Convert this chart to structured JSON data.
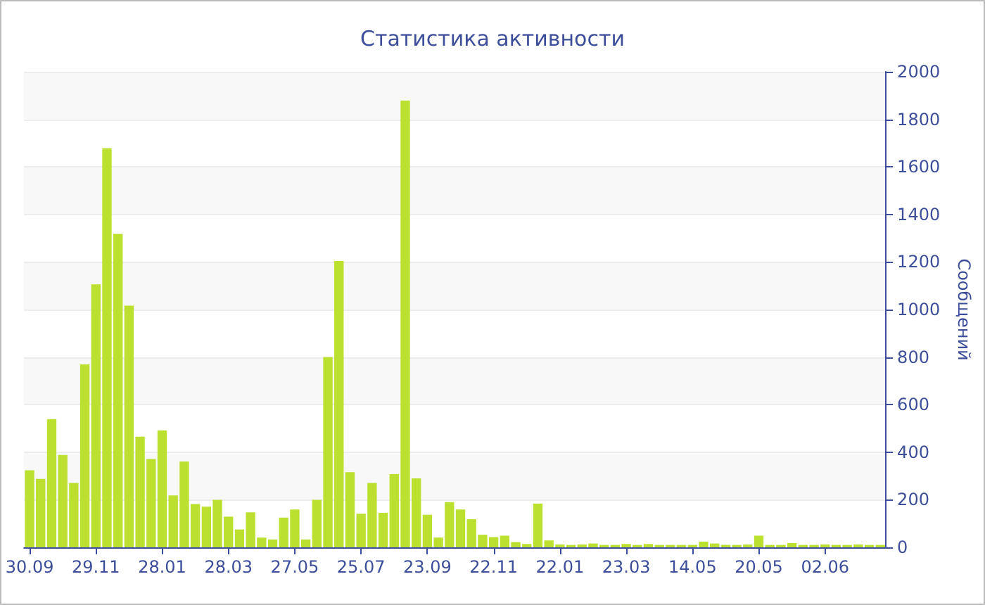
{
  "chart_data": {
    "type": "bar",
    "title": "Статистика активности",
    "ylabel": "Сообщений",
    "color": "#bbe02f",
    "categories": [
      "30.09",
      null,
      null,
      null,
      null,
      null,
      "29.11",
      null,
      null,
      null,
      null,
      null,
      "28.01",
      null,
      null,
      null,
      null,
      null,
      "28.03",
      null,
      null,
      null,
      null,
      null,
      "27.05",
      null,
      null,
      null,
      null,
      null,
      "25.07",
      null,
      null,
      null,
      null,
      null,
      "23.09",
      null,
      null,
      null,
      null,
      null,
      "22.11",
      null,
      null,
      null,
      null,
      null,
      "22.01",
      null,
      null,
      null,
      null,
      null,
      "23.03",
      null,
      null,
      null,
      null,
      null,
      "14.05",
      null,
      null,
      null,
      null,
      null,
      "20.05",
      null,
      null,
      null,
      null,
      null,
      "02.06",
      null,
      null,
      null,
      null,
      null
    ],
    "values": [
      324,
      288,
      539,
      388,
      271,
      769,
      1106,
      1678,
      1318,
      1016,
      465,
      371,
      492,
      218,
      361,
      182,
      171,
      200,
      129,
      75,
      147,
      41,
      33,
      125,
      159,
      33,
      200,
      800,
      1204,
      316,
      141,
      271,
      145,
      308,
      1879,
      290,
      137,
      41,
      190,
      159,
      118,
      53,
      43,
      49,
      22,
      14,
      184,
      29,
      12,
      10,
      12,
      16,
      10,
      10,
      14,
      10,
      14,
      10,
      10,
      10,
      10,
      24,
      16,
      10,
      10,
      12,
      49,
      10,
      10,
      18,
      10,
      10,
      12,
      10,
      10,
      12,
      10,
      10
    ],
    "ylim": [
      0,
      2000
    ],
    "yticks": [
      0,
      200,
      400,
      600,
      800,
      1000,
      1200,
      1400,
      1600,
      1800,
      2000
    ],
    "grid": "y"
  }
}
